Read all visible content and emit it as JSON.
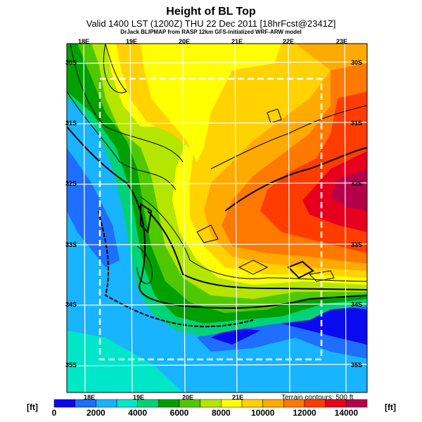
{
  "header": {
    "title": "Height of BL Top",
    "subtitle": "Valid 1400 LST (1200Z) THU 22 Dec 2011 [18hrFcst@2341Z]",
    "credit": "DrJack BLIPMAP from RASP 12km GFS-initialized WRF-ARW model"
  },
  "map": {
    "lon_labels_top": [
      "18E",
      "19E",
      "20E",
      "21E",
      "22E",
      "23E"
    ],
    "lon_labels_bottom": [
      "18E",
      "19E",
      "20E",
      "21E"
    ],
    "lat_labels_left": [
      "30S",
      "31S",
      "32S",
      "33S",
      "34S",
      "35S"
    ],
    "lat_labels_right": [
      "30S",
      "31S",
      "32S",
      "33S",
      "34S",
      "35S"
    ],
    "terrain_note": "Terrain contours: 500 ft"
  },
  "colorbar": {
    "unit_left": "[ft]",
    "unit_right": "[ft]",
    "min": 0,
    "max": 15000,
    "step": 1000,
    "tick_labels": [
      "0",
      "2000",
      "4000",
      "6000",
      "8000",
      "10000",
      "12000",
      "14000"
    ],
    "colors": [
      "#0a0aef",
      "#1e6eff",
      "#18b4ff",
      "#00e6c8",
      "#00d278",
      "#00a000",
      "#50c800",
      "#b4e600",
      "#ffff00",
      "#ffd200",
      "#ffaa00",
      "#ff7800",
      "#ff3c00",
      "#e6001e",
      "#b4004b"
    ]
  }
}
